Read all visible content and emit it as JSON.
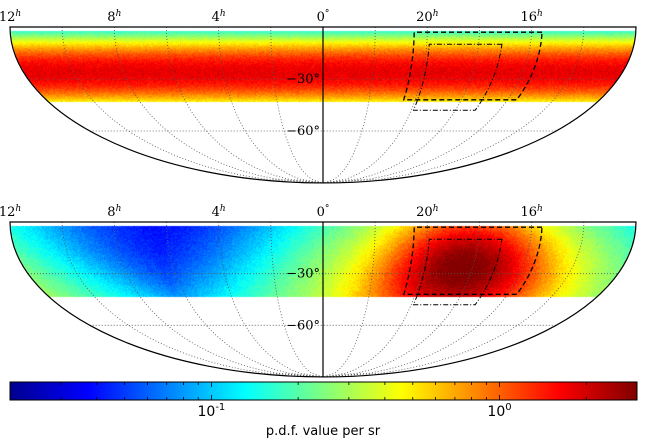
{
  "chart_data": [
    {
      "type": "heatmap",
      "projection": "half-sky elliptical (southern hemisphere)",
      "ra_tick_labels": [
        {
          "hours": 16,
          "label": "16",
          "sup": "h"
        },
        {
          "hours": 20,
          "label": "20",
          "sup": "h"
        },
        {
          "hours": 0,
          "label": "0",
          "sup": "°"
        },
        {
          "hours": 4,
          "label": "4",
          "sup": "h"
        },
        {
          "hours": 8,
          "label": "8",
          "sup": "h"
        },
        {
          "hours": 12,
          "label": "12",
          "sup": "h"
        }
      ],
      "dec_tick_labels": [
        {
          "deg": -30,
          "label": "−30°"
        },
        {
          "deg": -60,
          "label": "−60°"
        }
      ],
      "distribution": "uniform in right ascension; band in declination",
      "dec_range_deg": [
        -43,
        -2
      ],
      "peak_dec_deg": -26,
      "peak_value": 1.8,
      "edge_value": 0.07,
      "grid": true,
      "dashed_region": "RA 15.6h–20.5h, Dec −3° to −42°",
      "dotted_region": "RA 17.1h–19.9h, Dec −10° to −48°"
    },
    {
      "type": "heatmap",
      "projection": "half-sky elliptical (southern hemisphere)",
      "ra_tick_labels": [
        {
          "hours": 16,
          "label": "16",
          "sup": "h"
        },
        {
          "hours": 20,
          "label": "20",
          "sup": "h"
        },
        {
          "hours": 0,
          "label": "0",
          "sup": "°"
        },
        {
          "hours": 4,
          "label": "4",
          "sup": "h"
        },
        {
          "hours": 8,
          "label": "8",
          "sup": "h"
        },
        {
          "hours": 12,
          "label": "12",
          "sup": "h"
        }
      ],
      "dec_tick_labels": [
        {
          "deg": -30,
          "label": "−30°"
        },
        {
          "deg": -60,
          "label": "−60°"
        }
      ],
      "distribution": "localized peak inside band",
      "dec_range_deg": [
        -43,
        -2
      ],
      "peak_ra_hours": 18.4,
      "peak_dec_deg": -27,
      "peak_value": 2.6,
      "background_value": 0.035,
      "grid": true,
      "dashed_region": "RA 15.6h–20.5h, Dec −3° to −42°",
      "dotted_region": "RA 17.1h–19.9h, Dec −10° to −48°"
    },
    {
      "type": "colorbar",
      "scale": "log",
      "range": [
        0.02,
        3.0
      ],
      "colormap": "jet",
      "tick_labels": [
        {
          "value": 0.1,
          "base": "10",
          "exp": "-1"
        },
        {
          "value": 1.0,
          "base": "10",
          "exp": "0"
        }
      ],
      "label": "p.d.f. value per sr"
    }
  ],
  "colors": {
    "axis": "#000000",
    "grid": "#555555",
    "background": "#ffffff"
  }
}
